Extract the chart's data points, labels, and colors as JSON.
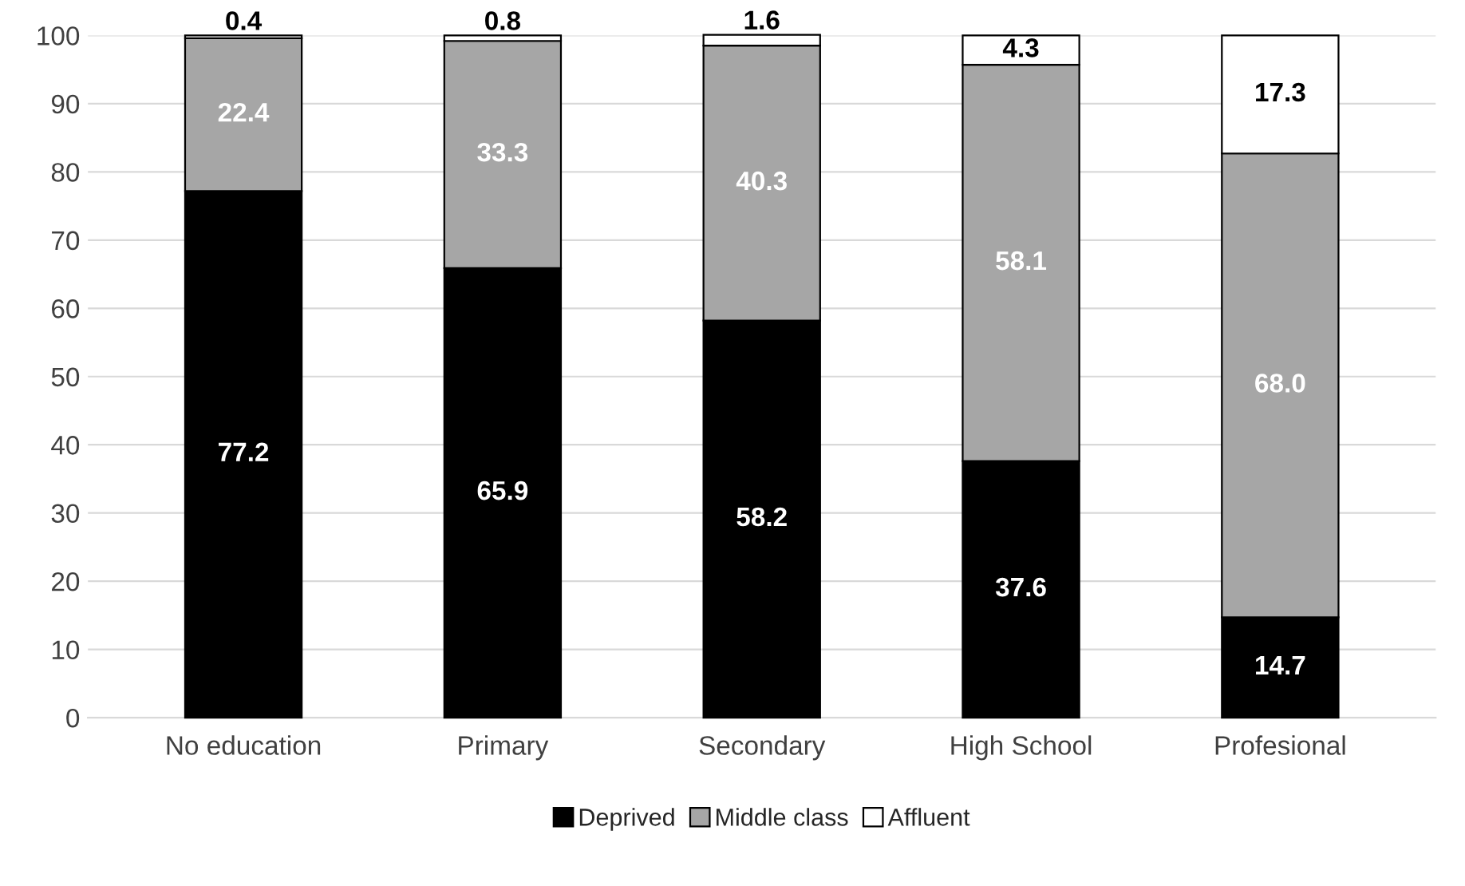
{
  "chart_data": {
    "type": "bar",
    "stacked": true,
    "categories": [
      "No education",
      "Primary",
      "Secondary",
      "High School",
      "Profesional"
    ],
    "series": [
      {
        "name": "Deprived",
        "color": "#000000",
        "values": [
          77.2,
          65.9,
          58.2,
          37.6,
          14.7
        ],
        "value_labels": [
          "77.2",
          "65.9",
          "58.2",
          "37.6",
          "14.7"
        ]
      },
      {
        "name": "Middle class",
        "color": "#a6a6a6",
        "values": [
          22.4,
          33.3,
          40.3,
          58.1,
          68.0
        ],
        "value_labels": [
          "22.4",
          "33.3",
          "40.3",
          "58.1",
          "68.0"
        ]
      },
      {
        "name": "Affluent",
        "color": "#ffffff",
        "values": [
          0.4,
          0.8,
          1.6,
          4.3,
          17.3
        ],
        "value_labels": [
          "0.4",
          "0.8",
          "1.6",
          "4.3",
          "17.3"
        ]
      }
    ],
    "ylim": [
      0,
      100
    ],
    "yticks": [
      0,
      10,
      20,
      30,
      40,
      50,
      60,
      70,
      80,
      90,
      100
    ],
    "grid": "y",
    "legend": "bottom"
  }
}
